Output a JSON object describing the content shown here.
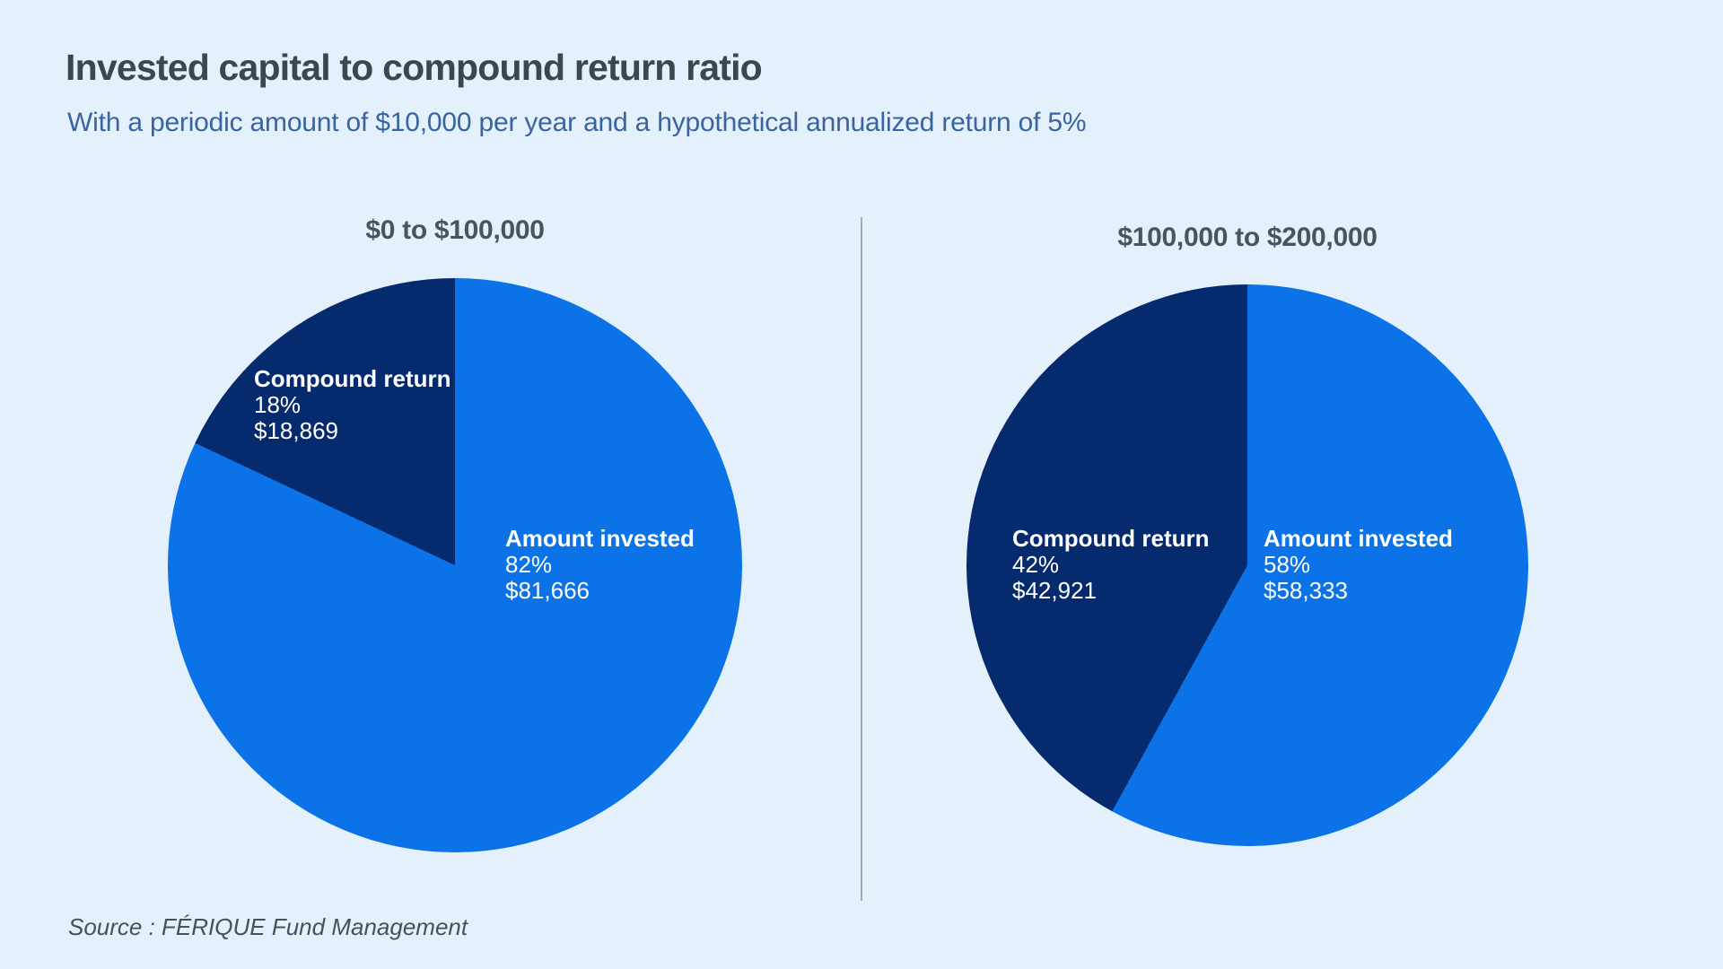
{
  "header": {
    "title": "Invested capital to compound return ratio",
    "subtitle": "With a periodic amount of $10,000 per year and a hypothetical annualized return of 5%"
  },
  "source": "Source : FÉRIQUE Fund Management",
  "colors": {
    "background": "#E4F0FC",
    "amount_invested_slice": "#0B73E7",
    "compound_return_slice": "#062A6E",
    "title_text": "#3A4650",
    "subtitle_text": "#3A64A0",
    "chart_title_text": "#4A545E",
    "slice_label_text": "#FFFFFF",
    "divider": "#A9AEB4",
    "source_text": "#44525C"
  },
  "chart_data": [
    {
      "type": "pie",
      "title": "$0 to $100,000",
      "legend_position": "inside",
      "start_angle_deg": 0,
      "direction": "clockwise-from-top",
      "slices": [
        {
          "label": "Amount invested",
          "percent": 82,
          "percent_label": "82%",
          "amount_label": "$81,666",
          "value": 81666,
          "color": "#0B73E7"
        },
        {
          "label": "Compound return",
          "percent": 18,
          "percent_label": "18%",
          "amount_label": "$18,869",
          "value": 18869,
          "color": "#062A6E"
        }
      ]
    },
    {
      "type": "pie",
      "title": "$100,000 to $200,000",
      "legend_position": "inside",
      "start_angle_deg": 0,
      "direction": "clockwise-from-top",
      "slices": [
        {
          "label": "Amount invested",
          "percent": 58,
          "percent_label": "58%",
          "amount_label": "$58,333",
          "value": 58333,
          "color": "#0B73E7"
        },
        {
          "label": "Compound return",
          "percent": 42,
          "percent_label": "42%",
          "amount_label": "$42,921",
          "value": 42921,
          "color": "#062A6E"
        }
      ]
    }
  ]
}
